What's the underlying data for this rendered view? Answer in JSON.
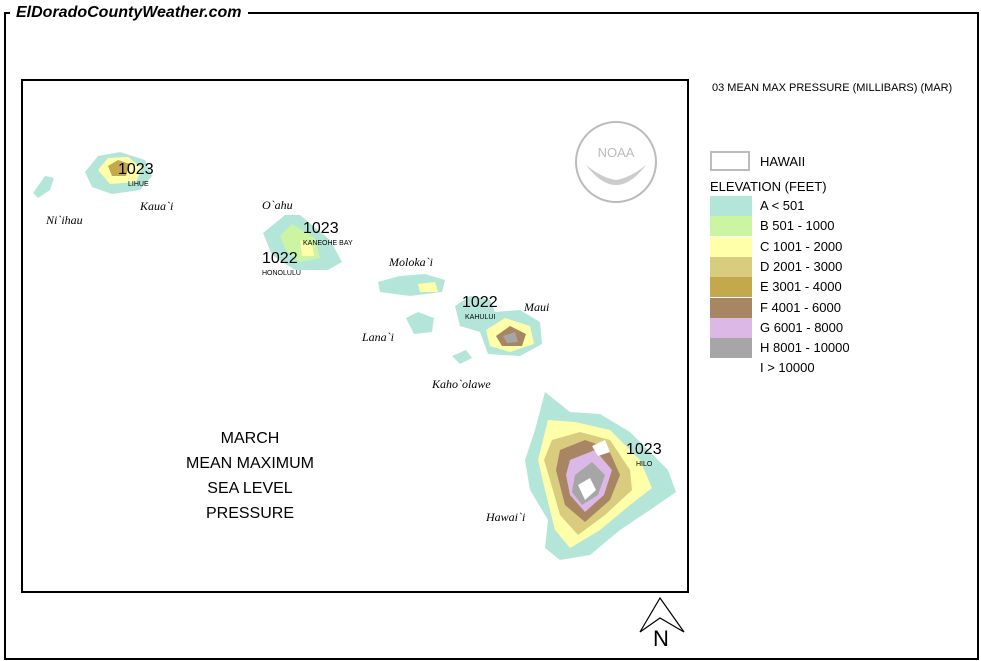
{
  "site": "ElDoradoCountyWeather.com",
  "legend": {
    "title": "03 MEAN MAX PRESSURE (MILLIBARS) (MAR)",
    "state_label": "HAWAII",
    "elevation_title": "ELEVATION (FEET)",
    "classes": [
      {
        "label": "A < 501",
        "color": "#b3e6d9"
      },
      {
        "label": "B 501 - 1000",
        "color": "#ccf5a3"
      },
      {
        "label": "C 1001 - 2000",
        "color": "#ffffaa"
      },
      {
        "label": "D 2001 - 3000",
        "color": "#d9cc7f"
      },
      {
        "label": "E 3001 - 4000",
        "color": "#c4a84e"
      },
      {
        "label": "F 4001 - 6000",
        "color": "#a88563"
      },
      {
        "label": "G 6001 - 8000",
        "color": "#dcb8e6"
      },
      {
        "label": "H 8001 - 10000",
        "color": "#a6a6a6"
      },
      {
        "label": "I > 10000",
        "color": "#ffffff"
      }
    ]
  },
  "map": {
    "title_lines": [
      "MARCH",
      "MEAN MAXIMUM",
      "SEA LEVEL PRESSURE"
    ],
    "islands": [
      "Ni`ihau",
      "Kaua`i",
      "O`ahu",
      "Moloka`i",
      "Lana`i",
      "Maui",
      "Kaho`olawe",
      "Hawai`i"
    ],
    "stations": [
      {
        "name": "LIHUE",
        "value": "1023"
      },
      {
        "name": "KANEOHE BAY",
        "value": "1023"
      },
      {
        "name": "HONOLULU",
        "value": "1022"
      },
      {
        "name": "KAHULUI",
        "value": "1022"
      },
      {
        "name": "HILO",
        "value": "1023"
      }
    ],
    "logo": "NOAA",
    "north": "N"
  }
}
